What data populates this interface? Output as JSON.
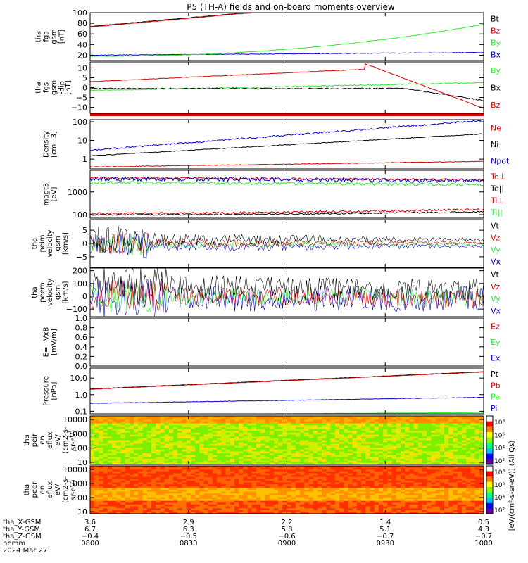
{
  "title": "P5 (TH-A) fields and on-board moments overview",
  "colors": {
    "black": "#000000",
    "red": "#d40000",
    "green": "#2ee82e",
    "blue": "#0000c8"
  },
  "chart_data": [
    {
      "id": "fgs_btotal",
      "type": "line",
      "ylabel": [
        "tha",
        "fgs",
        "gsm",
        "[nT]"
      ],
      "yticks": [
        "20",
        "40",
        "60",
        "80",
        "100"
      ],
      "ylim": [
        10,
        100
      ],
      "series": [
        {
          "name": "Bt",
          "color": "black"
        },
        {
          "name": "Bz",
          "color": "red"
        },
        {
          "name": "By",
          "color": "green"
        },
        {
          "name": "Bx",
          "color": "blue"
        }
      ]
    },
    {
      "id": "fgs_dipole_removed",
      "type": "line",
      "ylabel": [
        "tha",
        "fgs",
        "gsm",
        "-dip"
      ],
      "unit": "[nT]",
      "yticks": [
        "−10",
        "−5",
        "0",
        "5",
        "10"
      ],
      "ylim": [
        -13,
        13
      ],
      "series": [
        {
          "name": "By",
          "color": "green"
        },
        {
          "name": "Bx",
          "color": "black"
        },
        {
          "name": "Bz",
          "color": "red"
        }
      ]
    },
    {
      "id": "density",
      "type": "line",
      "ylabel": [
        "Density",
        "[cm−3]"
      ],
      "scale": "log",
      "yticks": [
        "1",
        "10",
        "100"
      ],
      "ylim": [
        0.3,
        130
      ],
      "series": [
        {
          "name": "Ne",
          "color": "red"
        },
        {
          "name": "Ni",
          "color": "black"
        },
        {
          "name": "Npot",
          "color": "blue"
        }
      ]
    },
    {
      "id": "temperature",
      "type": "line",
      "ylabel": [
        "magt3",
        "[eV]"
      ],
      "scale": "log",
      "yticks": [
        "100",
        "1000"
      ],
      "ylim": [
        70,
        9000
      ],
      "series": [
        {
          "name": "Te⊥",
          "color": "red"
        },
        {
          "name": "Te||",
          "color": "black"
        },
        {
          "name": "Ti⊥",
          "color": "red"
        },
        {
          "name": "Ti||",
          "color": "green"
        }
      ]
    },
    {
      "id": "peim_velocity",
      "type": "line",
      "ylabel": [
        "tha",
        "peim",
        "velocity",
        "gsm",
        "[km/s]"
      ],
      "yticks": [
        "−5",
        "0",
        "5"
      ],
      "ylim": [
        -9,
        9
      ],
      "series": [
        {
          "name": "Vt",
          "color": "black"
        },
        {
          "name": "Vz",
          "color": "red"
        },
        {
          "name": "Vy",
          "color": "green"
        },
        {
          "name": "Vx",
          "color": "blue"
        }
      ]
    },
    {
      "id": "peem_velocity",
      "type": "line",
      "ylabel": [
        "tha",
        "peem",
        "velocity",
        "gsm",
        "[km/s]"
      ],
      "yticks": [
        "−100",
        "0",
        "100",
        "200"
      ],
      "ylim": [
        -160,
        220
      ],
      "series": [
        {
          "name": "Vt",
          "color": "black"
        },
        {
          "name": "Vz",
          "color": "red"
        },
        {
          "name": "Vy",
          "color": "green"
        },
        {
          "name": "Vx",
          "color": "blue"
        }
      ]
    },
    {
      "id": "efield",
      "type": "line",
      "ylabel": [
        "E=−VxB",
        "[mV/m]"
      ],
      "yticks": [
        "0.0",
        "0.2",
        "0.4",
        "0.6",
        "0.8",
        "1.0"
      ],
      "ylim": [
        0,
        1
      ],
      "series": [
        {
          "name": "Ez",
          "color": "red"
        },
        {
          "name": "Ey",
          "color": "green"
        },
        {
          "name": "Ex",
          "color": "blue"
        }
      ]
    },
    {
      "id": "pressure",
      "type": "line",
      "ylabel": [
        "Pressure",
        "[nPa]"
      ],
      "scale": "log",
      "yticks": [
        "0.1",
        "1.0",
        "10.0"
      ],
      "ylim": [
        0.07,
        40
      ],
      "series": [
        {
          "name": "Pt",
          "color": "black"
        },
        {
          "name": "Pb",
          "color": "red"
        },
        {
          "name": "Pe",
          "color": "green"
        },
        {
          "name": "Pi",
          "color": "blue"
        }
      ]
    },
    {
      "id": "peir_eflux",
      "type": "heatmap",
      "ylabel": [
        "tha",
        "peir",
        "en",
        "eflux",
        "eV/",
        "(cm2-s-",
        "sr-eV)"
      ],
      "yticks": [
        "10",
        "100",
        "1000",
        "10000"
      ],
      "scale": "log"
    },
    {
      "id": "peer_eflux",
      "type": "heatmap",
      "ylabel": [
        "tha",
        "peer",
        "en",
        "eflux",
        "eV/",
        "(cm2-s-",
        "sr-eV)"
      ],
      "yticks": [
        "10",
        "100",
        "1000",
        "10000"
      ],
      "scale": "log"
    }
  ],
  "colorbar": {
    "ticks": [
      "10²",
      "10⁴",
      "10⁶",
      "10⁸"
    ],
    "label": "[eV/(cm²-s-sr-eV)] (All Qs)"
  },
  "x_axis": {
    "rows": [
      {
        "label": "tha_X-GSM",
        "values": [
          "3.6",
          "2.9",
          "2.2",
          "1.4",
          "0.5"
        ]
      },
      {
        "label": "tha_Y-GSM",
        "values": [
          "6.7",
          "6.3",
          "5.8",
          "5.1",
          "4.3"
        ]
      },
      {
        "label": "tha_Z-GSM",
        "values": [
          "−0.4",
          "−0.5",
          "−0.6",
          "−0.7",
          "−0.7"
        ]
      },
      {
        "label": "hhmm",
        "values": [
          "0800",
          "0830",
          "0900",
          "0930",
          "1000"
        ]
      }
    ],
    "date": "2024 Mar 27"
  }
}
